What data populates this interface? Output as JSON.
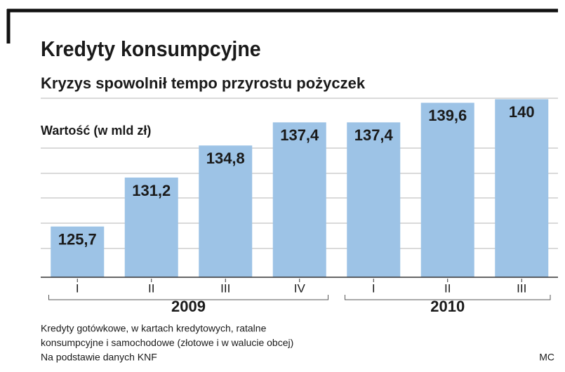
{
  "chart_data": {
    "type": "bar",
    "title": "Kredyty konsumpcyjne",
    "subtitle": "Kryzys spowolnił tempo przyrostu pożyczek",
    "y_axis_label": "Wartość (w mld zł)",
    "categories": [
      "I",
      "II",
      "III",
      "IV",
      "I",
      "II",
      "III"
    ],
    "x_groups": [
      {
        "label": "2009",
        "count": 4
      },
      {
        "label": "2010",
        "count": 3
      }
    ],
    "values": [
      125.7,
      131.2,
      134.8,
      137.4,
      137.4,
      139.6,
      140
    ],
    "value_labels": [
      "125,7",
      "131,2",
      "134,8",
      "137,4",
      "137,4",
      "139,6",
      "140"
    ],
    "color": "#9dc3e6",
    "ylim": [
      120,
      142
    ],
    "notes": [
      "Kredyty gotówkowe, w kartach kredytowych, ratalne",
      "konsumpcyjne i  samochodowe (złotowe i w walucie obcej)",
      "Na podstawie danych KNF"
    ],
    "source": "MC"
  }
}
